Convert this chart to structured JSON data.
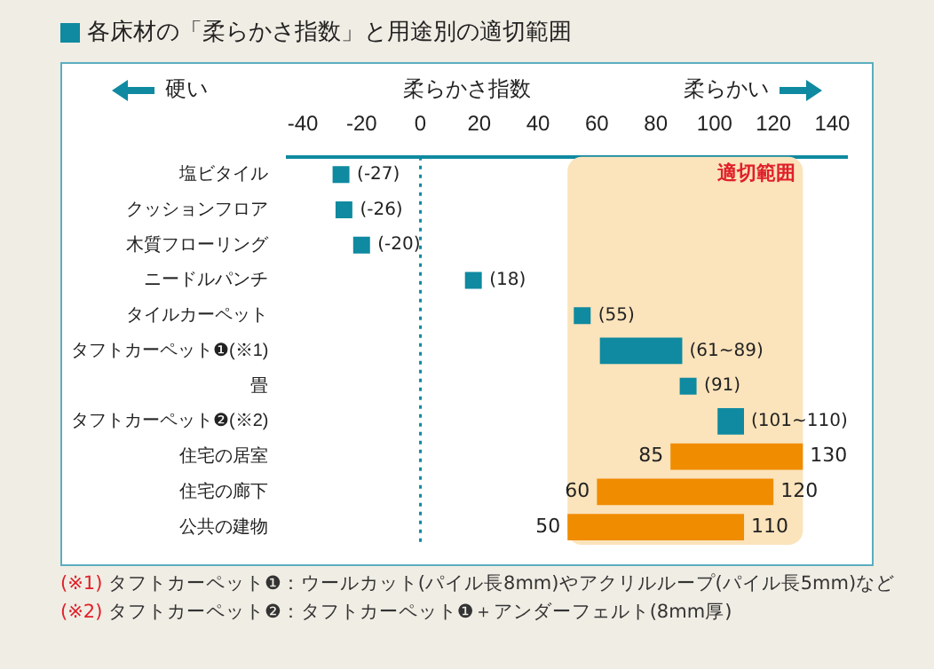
{
  "chart_data": {
    "type": "bar",
    "orientation": "horizontal",
    "title": "各床材の「柔らかさ指数」と用途別の適切範囲",
    "xlabel": "柔らかさ指数",
    "categories": [
      "塩ビタイル",
      "クッションフロア",
      "木質フローリング",
      "ニードルパンチ",
      "タイルカーペット",
      "タフトカーペット❶(※1)",
      "畳",
      "タフトカーペット❷(※2)",
      "住宅の居室",
      "住宅の廊下",
      "公共の建物"
    ],
    "series": [
      {
        "type": "scatter",
        "color": "#0f8aa0",
        "values": [
          -27,
          -26,
          -20,
          18,
          55,
          null,
          91,
          null,
          null,
          null,
          null
        ],
        "value_labels": [
          "(-27)",
          "(-26)",
          "(-20)",
          "(18)",
          "(55)",
          null,
          "(91)",
          null,
          null,
          null,
          null
        ]
      },
      {
        "base": [
          null,
          null,
          null,
          null,
          null,
          61,
          null,
          101,
          85,
          60,
          50
        ],
        "colors": [
          "#0f8aa0",
          "#0f8aa0",
          "#0f8aa0",
          "#0f8aa0",
          "#0f8aa0",
          "#0f8aa0",
          "#0f8aa0",
          "#0f8aa0",
          "#f08c00",
          "#f08c00",
          "#f08c00"
        ],
        "values": [
          null,
          null,
          null,
          null,
          null,
          28,
          null,
          9,
          45,
          60,
          60
        ],
        "value_labels": [
          null,
          null,
          null,
          null,
          null,
          "(61~89)",
          null,
          "(101~110)",
          null,
          null,
          null
        ]
      }
    ],
    "xlim": [
      -45,
      145
    ],
    "xticks": [
      -40,
      -20,
      0,
      20,
      40,
      60,
      80,
      100,
      120,
      140
    ],
    "marker": "square",
    "grid": false,
    "legend": false,
    "ref_lines": [
      {
        "axis": "x",
        "value": 0,
        "line_style": "dotted",
        "color": "#0f8aa0"
      }
    ],
    "bands": [
      {
        "axis": "x",
        "from": 50,
        "to": 130,
        "label": "適切範囲",
        "color": "#fbe3bb"
      }
    ],
    "annotations": [
      "硬い",
      "柔らかい",
      "(※1) タフトカーペット❶：ウールカット(パイル長8mm)やアクリルループ(パイル長5mm)など",
      "(※2) タフトカーペット❷：タフトカーペット❶＋アンダーフェルト(8mm厚)",
      {
        "text": "85",
        "x": 85,
        "y": "住宅の居室"
      },
      {
        "text": "130",
        "x": 130,
        "y": "住宅の居室"
      },
      {
        "text": "60",
        "x": 60,
        "y": "住宅の廊下"
      },
      {
        "text": "120",
        "x": 120,
        "y": "住宅の廊下"
      },
      {
        "text": "50",
        "x": 50,
        "y": "公共の建物"
      },
      {
        "text": "110",
        "x": 110,
        "y": "公共の建物"
      }
    ]
  }
}
